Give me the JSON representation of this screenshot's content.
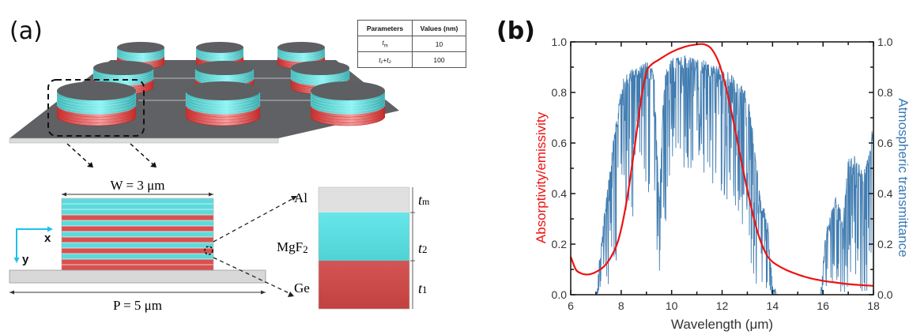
{
  "panels": {
    "a": {
      "label": "(a)",
      "param_table": {
        "headers": [
          "Parameters",
          "Values (nm)"
        ],
        "rows": [
          {
            "param": "t",
            "sub": "m",
            "value": "10"
          },
          {
            "param": "t₁+t₂",
            "sub": "",
            "value": "100"
          }
        ]
      },
      "cross_section": {
        "width_label": "W = 3 μm",
        "period_label": "P = 5 μm",
        "axis_x": "x",
        "axis_y": "y"
      },
      "layer_detail": {
        "layers": [
          {
            "material": "Al",
            "thickness": "tm",
            "color": "#e0e0e0"
          },
          {
            "material": "MgF₂",
            "thickness": "t2",
            "color": "#5ee0e3"
          },
          {
            "material": "Ge",
            "thickness": "t1",
            "color": "#cc4a4a"
          }
        ],
        "labels": {
          "al": "Al",
          "mgf2": "MgF",
          "mgf2_sub": "2",
          "ge": "Ge",
          "tm": "t",
          "tm_sub": "m",
          "t2": "t",
          "t2_sub": "2",
          "t1": "t",
          "t1_sub": "1"
        }
      },
      "colors": {
        "cyan": "#5ee0e3",
        "red": "#d9504f",
        "substrate": "#5a5c5f",
        "base": "#d8d8d8"
      }
    },
    "b": {
      "label": "(b)"
    }
  },
  "chart_data": {
    "type": "line",
    "title": "",
    "xlabel": "Wavelength (μm)",
    "ylabel": "Absorptivity/emissivity",
    "y2label": "Atmospheric transmittance",
    "xlim": [
      6,
      18
    ],
    "ylim": [
      0,
      1
    ],
    "y2lim": [
      0,
      1
    ],
    "xticks": [
      "6",
      "8",
      "10",
      "12",
      "14",
      "16",
      "18"
    ],
    "yticks": [
      "0.0",
      "0.2",
      "0.4",
      "0.6",
      "0.8",
      "1.0"
    ],
    "y2ticks": [
      "0.0",
      "0.2",
      "0.4",
      "0.6",
      "0.8",
      "1.0"
    ],
    "grid": false,
    "series": [
      {
        "name": "Absorptivity/emissivity",
        "axis": "left",
        "color": "#ee1111",
        "x": [
          6.0,
          6.2,
          6.4,
          6.6,
          6.8,
          7.0,
          7.3,
          7.6,
          7.9,
          8.2,
          8.5,
          8.8,
          9.0,
          9.2,
          9.5,
          10.0,
          10.5,
          11.0,
          11.3,
          11.6,
          11.9,
          12.2,
          12.5,
          12.8,
          13.1,
          13.4,
          13.7,
          14.0,
          14.5,
          15.0,
          15.5,
          16.0,
          16.5,
          17.0,
          17.5,
          18.0
        ],
        "y": [
          0.15,
          0.1,
          0.085,
          0.08,
          0.082,
          0.09,
          0.11,
          0.15,
          0.22,
          0.36,
          0.56,
          0.78,
          0.88,
          0.91,
          0.93,
          0.96,
          0.98,
          0.99,
          0.99,
          0.97,
          0.91,
          0.8,
          0.66,
          0.51,
          0.37,
          0.25,
          0.17,
          0.13,
          0.1,
          0.08,
          0.065,
          0.055,
          0.048,
          0.042,
          0.038,
          0.035
        ]
      },
      {
        "name": "Atmospheric transmittance",
        "axis": "right",
        "color": "#2e6fa8",
        "envelope": {
          "x": [
            7.0,
            7.3,
            7.6,
            7.9,
            8.0,
            8.5,
            9.0,
            9.3,
            9.5,
            9.7,
            9.9,
            10.0,
            10.5,
            11.0,
            11.5,
            12.0,
            12.5,
            13.0,
            13.3,
            13.5,
            13.8,
            14.0,
            14.2,
            15.9,
            16.1,
            16.5,
            16.8,
            17.0,
            17.3,
            17.6,
            18.0
          ],
          "max": [
            0.0,
            0.3,
            0.55,
            0.75,
            0.85,
            0.9,
            0.92,
            0.9,
            0.4,
            0.85,
            0.93,
            0.94,
            0.95,
            0.94,
            0.92,
            0.9,
            0.86,
            0.8,
            0.6,
            0.4,
            0.3,
            0.05,
            0.0,
            0.0,
            0.25,
            0.4,
            0.3,
            0.54,
            0.55,
            0.48,
            0.68
          ],
          "min": [
            0.0,
            0.0,
            0.05,
            0.1,
            0.2,
            0.3,
            0.4,
            0.3,
            0.05,
            0.2,
            0.45,
            0.55,
            0.5,
            0.5,
            0.45,
            0.4,
            0.3,
            0.2,
            0.05,
            0.0,
            0.0,
            0.0,
            0.0,
            0.0,
            0.0,
            0.0,
            0.0,
            0.0,
            0.0,
            0.0,
            0.0
          ]
        }
      }
    ]
  }
}
